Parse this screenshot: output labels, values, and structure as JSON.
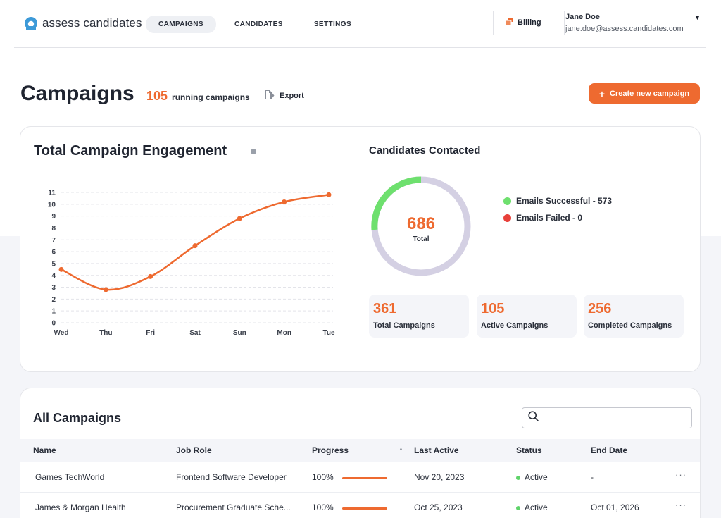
{
  "app": {
    "name": "assess candidates"
  },
  "nav": {
    "tabs": [
      "CAMPAIGNS",
      "CANDIDATES",
      "SETTINGS"
    ],
    "active": 0
  },
  "header": {
    "billing_label": "Billing"
  },
  "user": {
    "name": "Jane Doe",
    "email": "jane.doe@assess.candidates.com"
  },
  "page": {
    "title": "Campaigns",
    "running_count": "105",
    "running_label": "running campaigns",
    "export_label": "Export",
    "create_label": "Create new campaign"
  },
  "engagement": {
    "title": "Total Campaign Engagement",
    "chart_data": {
      "type": "line",
      "title": "Total Campaign Engagement",
      "x": [
        "Wed",
        "Thu",
        "Fri",
        "Sat",
        "Sun",
        "Mon",
        "Tue"
      ],
      "y_ticks": [
        0,
        1,
        2,
        3,
        4,
        5,
        6,
        7,
        8,
        9,
        10,
        11
      ],
      "ylim": [
        0,
        11
      ],
      "series": [
        {
          "values": [
            4.5,
            2.8,
            3.9,
            6.5,
            8.8,
            10.2,
            10.8
          ]
        }
      ],
      "grid": true,
      "color": "#ee6a30"
    }
  },
  "contacted": {
    "title": "Candidates Contacted",
    "total": "686",
    "total_label": "Total",
    "donut": {
      "successful": 573,
      "failed": 0,
      "total": 686
    },
    "legend": [
      {
        "label": "Emails Successful - 573",
        "color": "#6ee06e"
      },
      {
        "label": "Emails Failed - 0",
        "color": "#e8403a"
      }
    ],
    "stats": [
      {
        "value": "361",
        "label": "Total Campaigns"
      },
      {
        "value": "105",
        "label": "Active Campaigns"
      },
      {
        "value": "256",
        "label": "Completed Campaigns"
      }
    ]
  },
  "campaigns": {
    "title": "All Campaigns",
    "search_placeholder": "",
    "columns": [
      "Name",
      "Job Role",
      "Progress",
      "Last Active",
      "Status",
      "End Date"
    ],
    "rows": [
      {
        "name": "Games TechWorld",
        "role": "Frontend Software Developer",
        "progress": "100%",
        "last_active": "Nov 20, 2023",
        "status": "Active",
        "end_date": "-"
      },
      {
        "name": "James & Morgan Health",
        "role": "Procurement Graduate Sche...",
        "progress": "100%",
        "last_active": "Oct 25, 2023",
        "status": "Active",
        "end_date": "Oct 01, 2026"
      }
    ]
  },
  "colors": {
    "accent": "#ee6a30",
    "success": "#6ee06e",
    "ring": "#d4d0e3"
  }
}
